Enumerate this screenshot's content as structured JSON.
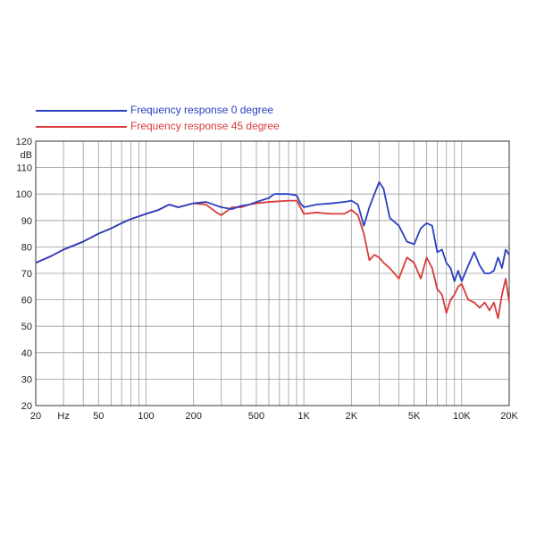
{
  "chart_data": {
    "type": "line",
    "x_scale": "log",
    "xlim": [
      20,
      20000
    ],
    "ylim": [
      20,
      120
    ],
    "ylabel": "dB",
    "xlabel_unit": "Hz",
    "grid": true,
    "legend_position": "top-left",
    "x_ticks": [
      {
        "value": 20,
        "label": "20"
      },
      {
        "value": 50,
        "label": "50"
      },
      {
        "value": 100,
        "label": "100"
      },
      {
        "value": 200,
        "label": "200"
      },
      {
        "value": 500,
        "label": "500"
      },
      {
        "value": 1000,
        "label": "1K"
      },
      {
        "value": 2000,
        "label": "2K"
      },
      {
        "value": 5000,
        "label": "5K"
      },
      {
        "value": 10000,
        "label": "10K"
      },
      {
        "value": 20000,
        "label": "20K"
      }
    ],
    "y_ticks": [
      20,
      30,
      40,
      50,
      60,
      70,
      80,
      90,
      100,
      110,
      120
    ],
    "series": [
      {
        "name": "Frequency response 0 degree",
        "color": "#2a3fc1",
        "points": [
          [
            20,
            74
          ],
          [
            25,
            76.5
          ],
          [
            30,
            79
          ],
          [
            40,
            82
          ],
          [
            50,
            85
          ],
          [
            60,
            87
          ],
          [
            70,
            89
          ],
          [
            80,
            90.5
          ],
          [
            100,
            92.5
          ],
          [
            120,
            94
          ],
          [
            140,
            96
          ],
          [
            160,
            95
          ],
          [
            200,
            96.5
          ],
          [
            240,
            97
          ],
          [
            300,
            95
          ],
          [
            350,
            94.3
          ],
          [
            400,
            95.5
          ],
          [
            450,
            96
          ],
          [
            500,
            97
          ],
          [
            600,
            98.5
          ],
          [
            650,
            100
          ],
          [
            800,
            100
          ],
          [
            900,
            99.5
          ],
          [
            950,
            96.5
          ],
          [
            1000,
            95
          ],
          [
            1200,
            96
          ],
          [
            1500,
            96.5
          ],
          [
            1800,
            97
          ],
          [
            2000,
            97.5
          ],
          [
            2200,
            96
          ],
          [
            2400,
            88
          ],
          [
            2600,
            95
          ],
          [
            2800,
            100
          ],
          [
            3000,
            104.5
          ],
          [
            3200,
            102
          ],
          [
            3500,
            91
          ],
          [
            4000,
            88
          ],
          [
            4500,
            82
          ],
          [
            5000,
            81
          ],
          [
            5500,
            87
          ],
          [
            6000,
            89
          ],
          [
            6500,
            88
          ],
          [
            7000,
            78
          ],
          [
            7500,
            79
          ],
          [
            8000,
            74
          ],
          [
            8500,
            72
          ],
          [
            9000,
            67
          ],
          [
            9500,
            71
          ],
          [
            10000,
            67
          ],
          [
            11000,
            73
          ],
          [
            12000,
            78
          ],
          [
            13000,
            73
          ],
          [
            14000,
            70
          ],
          [
            15000,
            70
          ],
          [
            16000,
            71
          ],
          [
            17000,
            76
          ],
          [
            18000,
            72
          ],
          [
            19000,
            79
          ],
          [
            20000,
            77
          ]
        ]
      },
      {
        "name": "Frequency response 45 degree",
        "color": "#d93a3a",
        "points": [
          [
            20,
            74
          ],
          [
            25,
            76.5
          ],
          [
            30,
            79
          ],
          [
            40,
            82
          ],
          [
            50,
            85
          ],
          [
            60,
            87
          ],
          [
            70,
            89
          ],
          [
            80,
            90.5
          ],
          [
            100,
            92.5
          ],
          [
            120,
            94
          ],
          [
            140,
            96
          ],
          [
            160,
            95
          ],
          [
            200,
            96.5
          ],
          [
            240,
            96
          ],
          [
            280,
            93
          ],
          [
            300,
            92
          ],
          [
            350,
            95
          ],
          [
            400,
            95
          ],
          [
            450,
            96
          ],
          [
            500,
            96.5
          ],
          [
            600,
            97
          ],
          [
            800,
            97.5
          ],
          [
            900,
            97.5
          ],
          [
            950,
            95
          ],
          [
            1000,
            92.5
          ],
          [
            1200,
            93
          ],
          [
            1500,
            92.5
          ],
          [
            1800,
            92.5
          ],
          [
            2000,
            94
          ],
          [
            2200,
            92
          ],
          [
            2400,
            85
          ],
          [
            2600,
            75
          ],
          [
            2800,
            77
          ],
          [
            3000,
            76
          ],
          [
            3200,
            74
          ],
          [
            3500,
            72
          ],
          [
            4000,
            68
          ],
          [
            4500,
            76
          ],
          [
            5000,
            74
          ],
          [
            5500,
            68
          ],
          [
            6000,
            76
          ],
          [
            6500,
            72
          ],
          [
            7000,
            64
          ],
          [
            7500,
            62
          ],
          [
            8000,
            55
          ],
          [
            8500,
            60
          ],
          [
            9000,
            62
          ],
          [
            9500,
            65
          ],
          [
            10000,
            66
          ],
          [
            11000,
            60
          ],
          [
            12000,
            59
          ],
          [
            13000,
            57
          ],
          [
            14000,
            59
          ],
          [
            15000,
            56
          ],
          [
            16000,
            59
          ],
          [
            17000,
            53
          ],
          [
            18000,
            62
          ],
          [
            19000,
            68
          ],
          [
            20000,
            59
          ]
        ]
      }
    ]
  }
}
